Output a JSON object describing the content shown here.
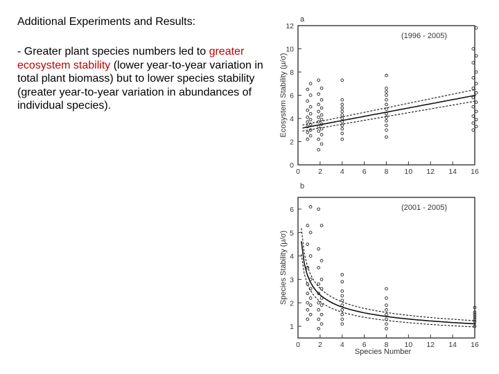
{
  "slide": {
    "heading": "Additional Experiments and Results:",
    "paragraph_parts": [
      "- Greater plant species numbers led to ",
      "greater ecosystem stability",
      " (lower year-to-year variation in total plant biomass) but to lower species stability (greater year-to-year variation in abundances of individual species)."
    ],
    "highlight_color": "#c00000"
  },
  "chart_data": [
    {
      "type": "scatter",
      "panel_label": "a",
      "annotation": "(1996 - 2005)",
      "ylabel": "Ecosystem Stability (μ/σ)",
      "xlabel": "",
      "xlim": [
        0,
        16
      ],
      "ylim": [
        0,
        12
      ],
      "x_ticks": [
        0,
        2,
        4,
        6,
        8,
        10,
        12,
        14,
        16
      ],
      "y_ticks": [
        0,
        2,
        4,
        6,
        8,
        10,
        12
      ],
      "grid": false,
      "x_groups": [
        1,
        2,
        4,
        8,
        16
      ],
      "y_values": [
        [
          2.2,
          2.5,
          2.8,
          3.0,
          3.3,
          3.5,
          3.7,
          3.9,
          4.1,
          4.4,
          4.7,
          5.0,
          5.5,
          6.0,
          6.5,
          7.0
        ],
        [
          1.3,
          1.8,
          2.2,
          2.6,
          2.9,
          3.1,
          3.3,
          3.5,
          3.7,
          3.9,
          4.1,
          4.3,
          4.6,
          4.9,
          5.2,
          5.6,
          6.1,
          6.6,
          7.3
        ],
        [
          2.2,
          2.7,
          3.1,
          3.4,
          3.7,
          4.0,
          4.3,
          4.6,
          4.9,
          5.2,
          5.6,
          7.3
        ],
        [
          2.4,
          3.0,
          3.4,
          3.8,
          4.1,
          4.4,
          4.8,
          5.2,
          5.6,
          6.0,
          6.3,
          6.6,
          7.7
        ],
        [
          3.0,
          3.3,
          3.6,
          3.9,
          4.2,
          4.6,
          5.0,
          5.4,
          5.8,
          6.2,
          6.6,
          7.0,
          7.5,
          8.0,
          8.8,
          9.4,
          10.0,
          11.8
        ]
      ],
      "fit": {
        "kind": "linear",
        "intercept": 3.1,
        "slope": 0.18,
        "ci_halfwidth_start": 0.25,
        "ci_halfwidth_end": 0.5
      }
    },
    {
      "type": "scatter",
      "panel_label": "b",
      "annotation": "(2001 - 2005)",
      "ylabel": "Species Stability (μ/σ)",
      "xlabel": "Species Number",
      "xlim": [
        0,
        16
      ],
      "ylim": [
        0.5,
        6.5
      ],
      "x_ticks": [
        0,
        2,
        4,
        6,
        8,
        10,
        12,
        14,
        16
      ],
      "y_ticks": [
        1,
        2,
        3,
        4,
        5,
        6
      ],
      "grid": false,
      "x_groups": [
        1,
        2,
        4,
        8,
        16
      ],
      "y_values": [
        [
          1.3,
          1.5,
          1.7,
          1.9,
          2.0,
          2.2,
          2.4,
          2.6,
          2.8,
          3.0,
          3.5,
          4.0,
          4.5,
          5.0,
          5.3,
          6.1
        ],
        [
          0.9,
          1.1,
          1.3,
          1.5,
          1.7,
          1.9,
          2.0,
          2.2,
          2.4,
          2.6,
          2.8,
          3.0,
          3.5,
          3.8,
          4.3,
          5.3,
          6.0
        ],
        [
          1.1,
          1.3,
          1.5,
          1.7,
          1.9,
          2.1,
          2.3,
          2.5,
          2.9,
          3.2
        ],
        [
          0.9,
          1.1,
          1.3,
          1.5,
          1.7,
          1.9,
          2.2,
          2.6
        ],
        [
          1.0,
          1.2,
          1.3,
          1.4,
          1.5,
          1.6,
          1.8
        ]
      ],
      "fit": {
        "kind": "power",
        "a": 3.0,
        "b": -0.36,
        "ci_halfwidth": 0.12
      }
    }
  ]
}
